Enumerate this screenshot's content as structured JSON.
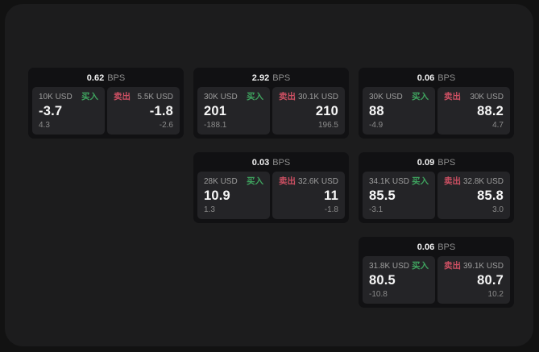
{
  "labels": {
    "buy": "买入",
    "sell": "卖出",
    "bps_unit": "BPS"
  },
  "colors": {
    "buy_green": "#3fa45f",
    "sell_red": "#ce5063",
    "panel_bg": "#1c1c1d",
    "card_bg": "#111113",
    "tile_bg": "#242427"
  },
  "cards": [
    {
      "bps": "0.62",
      "buy": {
        "amount": "10K USD",
        "value": "-3.7",
        "change": "4.3"
      },
      "sell": {
        "amount": "5.5K USD",
        "value": "-1.8",
        "change": "-2.6"
      }
    },
    {
      "bps": "2.92",
      "buy": {
        "amount": "30K USD",
        "value": "201",
        "change": "-188.1"
      },
      "sell": {
        "amount": "30.1K USD",
        "value": "210",
        "change": "196.5"
      }
    },
    {
      "bps": "0.06",
      "buy": {
        "amount": "30K USD",
        "value": "88",
        "change": "-4.9"
      },
      "sell": {
        "amount": "30K USD",
        "value": "88.2",
        "change": "4.7"
      }
    },
    {
      "bps": "0.03",
      "buy": {
        "amount": "28K USD",
        "value": "10.9",
        "change": "1.3"
      },
      "sell": {
        "amount": "32.6K USD",
        "value": "11",
        "change": "-1.8"
      }
    },
    {
      "bps": "0.09",
      "buy": {
        "amount": "34.1K USD",
        "value": "85.5",
        "change": "-3.1"
      },
      "sell": {
        "amount": "32.8K USD",
        "value": "85.8",
        "change": "3.0"
      }
    },
    {
      "bps": "0.06",
      "buy": {
        "amount": "31.8K USD",
        "value": "80.5",
        "change": "-10.8"
      },
      "sell": {
        "amount": "39.1K USD",
        "value": "80.7",
        "change": "10.2"
      }
    }
  ]
}
